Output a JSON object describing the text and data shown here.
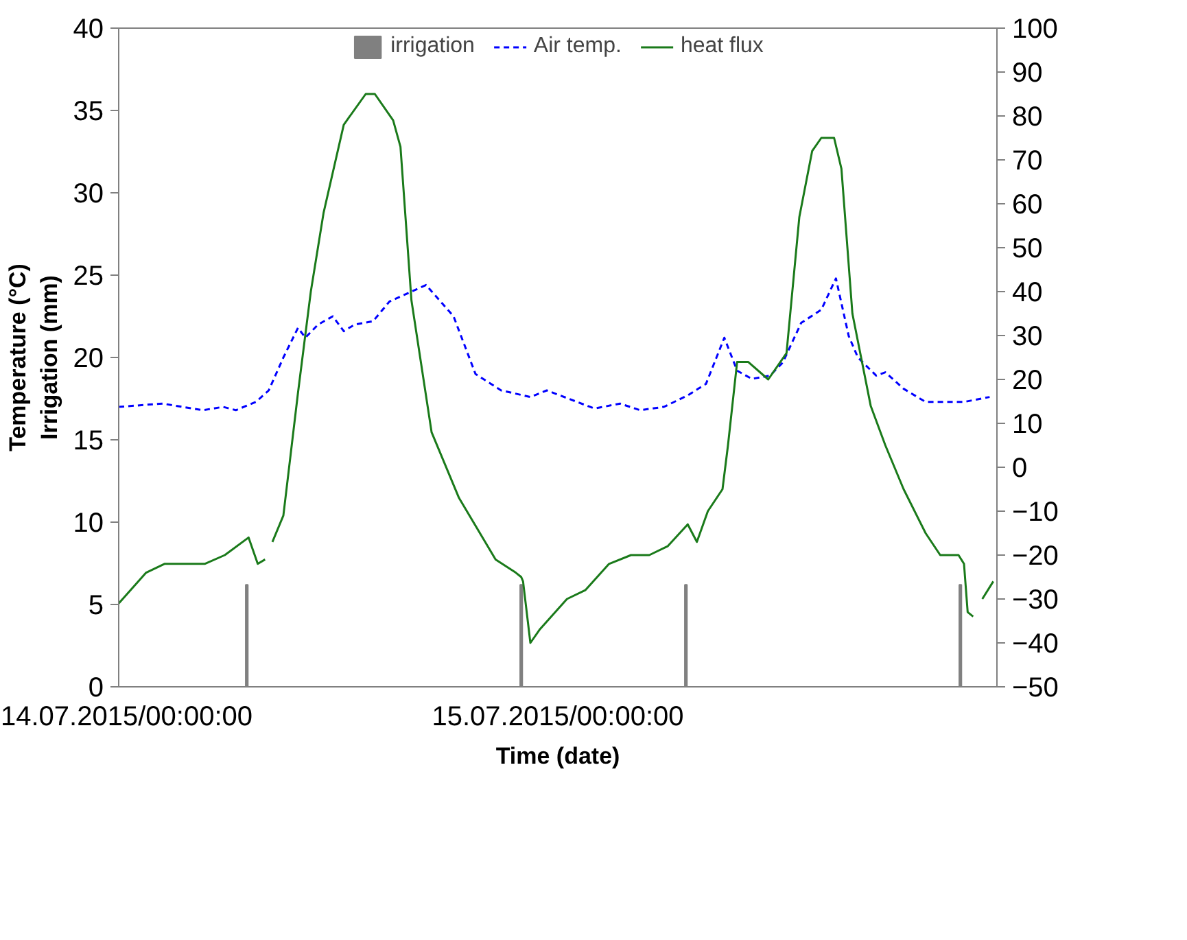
{
  "chart_data": {
    "type": "line",
    "xlabel": "Time (date)",
    "ylabel": "Temperature (°C)\nIrrigation (mm)",
    "xlim": [
      "2015-07-14T00:00",
      "2015-07-16T00:00"
    ],
    "xticks": [
      {
        "value": "2015-07-14T00:00",
        "label": "14.07.2015/00:00:00"
      },
      {
        "value": "2015-07-15T00:00",
        "label": "15.07.2015/00:00:00"
      }
    ],
    "ylim": [
      0,
      40
    ],
    "yticks": [
      0,
      5,
      10,
      15,
      20,
      25,
      30,
      35,
      40
    ],
    "y2lim": [
      -50,
      100
    ],
    "y2ticks": [
      -50,
      -40,
      -30,
      -20,
      -10,
      0,
      10,
      20,
      30,
      40,
      50,
      60,
      70,
      80,
      90,
      100
    ],
    "legend": "top",
    "series": [
      {
        "name": "irrigation",
        "type": "bar",
        "color": "#808080",
        "x": [
          "2015-07-14T07:00",
          "2015-07-14T22:00",
          "2015-07-15T07:00",
          "2015-07-15T22:00"
        ],
        "values": [
          6.2,
          6.2,
          6.2,
          6.2
        ]
      },
      {
        "name": "Air temp.",
        "line_style": "dashed",
        "color": "#0000ff",
        "x": [
          "2015-07-14T00:00",
          "2015-07-14T02:24",
          "2015-07-14T04:36",
          "2015-07-14T05:42",
          "2015-07-14T06:24",
          "2015-07-14T07:30",
          "2015-07-14T08:12",
          "2015-07-14T09:00",
          "2015-07-14T09:48",
          "2015-07-14T10:12",
          "2015-07-14T10:54",
          "2015-07-14T11:42",
          "2015-07-14T12:18",
          "2015-07-14T12:54",
          "2015-07-14T13:54",
          "2015-07-14T14:48",
          "2015-07-14T16:48",
          "2015-07-14T18:18",
          "2015-07-14T19:30",
          "2015-07-14T20:54",
          "2015-07-14T22:30",
          "2015-07-14T23:24",
          "2015-07-15T02:00",
          "2015-07-15T03:24",
          "2015-07-15T04:30",
          "2015-07-15T05:48",
          "2015-07-15T07:06",
          "2015-07-15T08:06",
          "2015-07-15T09:06",
          "2015-07-15T09:48",
          "2015-07-15T10:36",
          "2015-07-15T11:36",
          "2015-07-15T12:18",
          "2015-07-15T13:18",
          "2015-07-15T14:24",
          "2015-07-15T15:12",
          "2015-07-15T15:54",
          "2015-07-15T16:24",
          "2015-07-15T17:24",
          "2015-07-15T17:54",
          "2015-07-15T18:54",
          "2015-07-15T20:06",
          "2015-07-15T22:12",
          "2015-07-15T23:36"
        ],
        "values": [
          17,
          17.2,
          16.8,
          17,
          16.8,
          17.3,
          18,
          20,
          21.8,
          21.2,
          22,
          22.5,
          21.6,
          22,
          22.2,
          23.4,
          24.4,
          22.5,
          19,
          18,
          17.6,
          18,
          16.9,
          17.2,
          16.8,
          17,
          17.7,
          18.4,
          21.2,
          19.2,
          18.7,
          18.9,
          19.7,
          22.1,
          22.9,
          24.8,
          21.3,
          20,
          18.9,
          19.1,
          18.1,
          17.3,
          17.3,
          17.6
        ]
      },
      {
        "name": "heat flux",
        "axis": "y2",
        "line_style": "solid",
        "color": "#1a7a1a",
        "x": [
          "2015-07-14T00:00",
          "2015-07-14T01:30",
          "2015-07-14T02:30",
          "2015-07-14T04:00",
          "2015-07-14T04:42",
          "2015-07-14T05:48",
          "2015-07-14T07:06",
          "2015-07-14T07:36",
          "2015-07-14T08:00",
          "2015-07-14T08:12",
          "2015-07-14T08:24",
          "2015-07-14T09:00",
          "2015-07-14T09:48",
          "2015-07-14T10:30",
          "2015-07-14T11:12",
          "2015-07-14T12:18",
          "2015-07-14T13:30",
          "2015-07-14T14:00",
          "2015-07-14T15:00",
          "2015-07-14T15:24",
          "2015-07-14T16:00",
          "2015-07-14T17:06",
          "2015-07-14T18:36",
          "2015-07-14T20:36",
          "2015-07-14T21:42",
          "2015-07-14T22:00",
          "2015-07-14T22:06",
          "2015-07-14T22:30",
          "2015-07-14T23:00",
          "2015-07-15T00:30",
          "2015-07-15T01:30",
          "2015-07-15T02:48",
          "2015-07-15T04:00",
          "2015-07-15T05:00",
          "2015-07-15T06:00",
          "2015-07-15T07:06",
          "2015-07-15T07:36",
          "2015-07-15T08:12",
          "2015-07-15T09:00",
          "2015-07-15T09:18",
          "2015-07-15T09:48",
          "2015-07-15T10:24",
          "2015-07-15T11:30",
          "2015-07-15T12:30",
          "2015-07-15T13:12",
          "2015-07-15T13:54",
          "2015-07-15T14:24",
          "2015-07-15T15:06",
          "2015-07-15T15:30",
          "2015-07-15T16:06",
          "2015-07-15T17:06",
          "2015-07-15T17:54",
          "2015-07-15T18:54",
          "2015-07-15T20:06",
          "2015-07-15T20:54",
          "2015-07-15T21:54",
          "2015-07-15T22:12",
          "2015-07-15T22:24",
          "2015-07-15T22:42",
          "2015-07-15T23:00",
          "2015-07-15T23:12",
          "2015-07-15T23:48"
        ],
        "values": [
          -31,
          -24,
          -22,
          -22,
          -22,
          -20,
          -16,
          -22,
          -21,
          null,
          -17,
          -11,
          17,
          40,
          58,
          78,
          85,
          85,
          79,
          73,
          38,
          8,
          -7,
          -21,
          -24,
          -25,
          -26,
          -40,
          -37,
          -30,
          -28,
          -22,
          -20,
          -20,
          -18,
          -13,
          -17,
          -10,
          -5,
          5,
          24,
          24,
          20,
          26,
          57,
          72,
          75,
          75,
          68,
          35,
          14,
          5,
          -5,
          -15,
          -20,
          -20,
          -22,
          -33,
          -34,
          null,
          -30,
          -26
        ]
      }
    ]
  }
}
